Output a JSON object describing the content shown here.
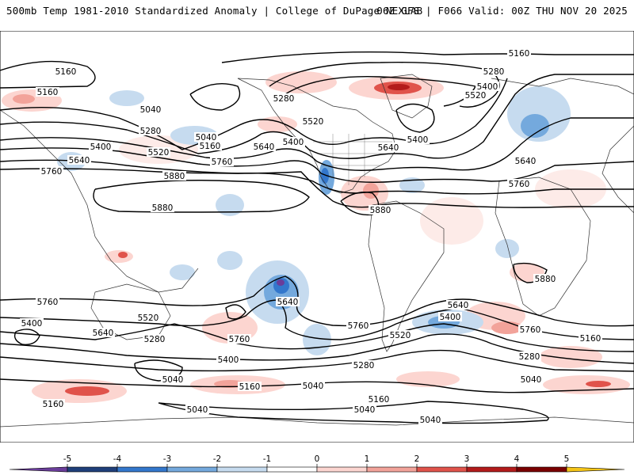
{
  "header": {
    "left_title": "500mb Temp 1981-2010 Standardized Anomaly | College of DuPage NEXLAB",
    "right_title": "06Z GFS | F066 Valid: 00Z THU NOV 20 2025"
  },
  "contour_labels": [
    "5160",
    "5160",
    "5160",
    "5040",
    "5280",
    "5280",
    "5280",
    "5520",
    "5400",
    "5400",
    "5520",
    "5040",
    "5160",
    "5400",
    "5640",
    "5640",
    "5640",
    "5400",
    "5760",
    "5520",
    "5760",
    "5880",
    "5640",
    "5880",
    "5760",
    "5880",
    "5880",
    "5760",
    "5640",
    "5760",
    "5400",
    "5640",
    "5520",
    "5280",
    "5760",
    "5400",
    "5760",
    "5640",
    "5400",
    "5520",
    "5760",
    "5160",
    "5280",
    "5280",
    "5040",
    "5160",
    "5040",
    "5160",
    "5040",
    "5040",
    "5040",
    "5160",
    "5040"
  ],
  "colorbar": {
    "labels": [
      "-5",
      "-4",
      "-3",
      "-2",
      "-1",
      "0",
      "1",
      "2",
      "3",
      "4",
      "5"
    ],
    "colors": [
      "#6a3d9a",
      "#1f3f7a",
      "#3377cc",
      "#74a9dd",
      "#c6dbef",
      "#ffffff",
      "#fcd5d0",
      "#f2a39a",
      "#e0534b",
      "#b31b1b",
      "#7a0000",
      "#f5c518"
    ]
  }
}
